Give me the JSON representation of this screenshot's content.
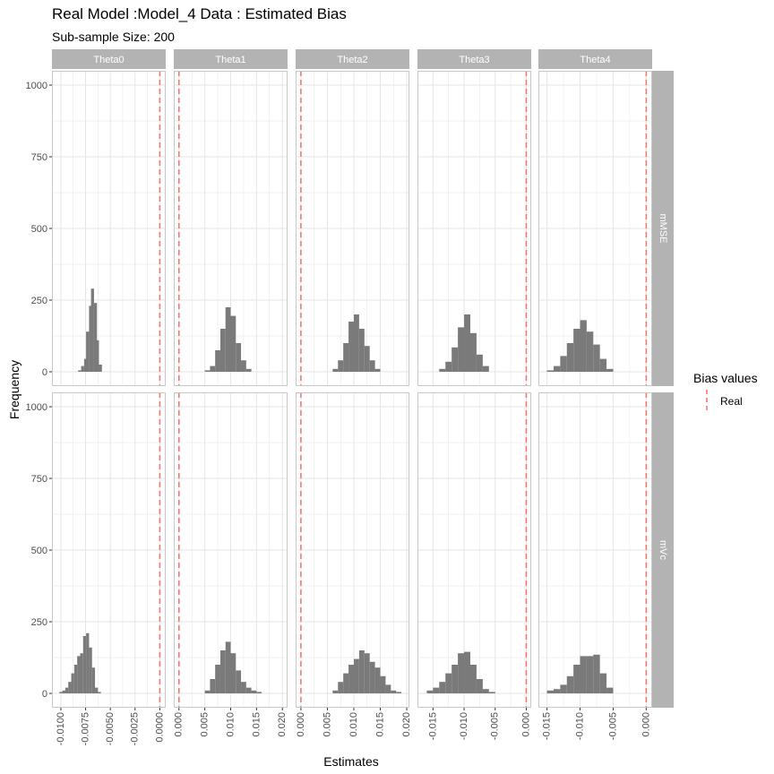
{
  "title": "Real Model :Model_4 Data : Estimated Bias",
  "subtitle": "Sub-sample Size: 200",
  "xlabel": "Estimates",
  "ylabel": "Frequency",
  "legend": {
    "title": "Bias values",
    "items": [
      {
        "label": "Real",
        "color": "#F8766D",
        "style": "dashed"
      }
    ]
  },
  "colors": {
    "bar": "#7a7a7a",
    "strip": "#b3b3b3",
    "grid": "#e5e5e5",
    "panel_border": "#c8c8c8",
    "ref_line": "#F8766D"
  },
  "chart_data": {
    "type": "histogram",
    "facet_cols": [
      "Theta0",
      "Theta1",
      "Theta2",
      "Theta3",
      "Theta4"
    ],
    "facet_rows": [
      "mMSE",
      "mVc"
    ],
    "y_ticks": [
      0,
      250,
      500,
      750,
      1000
    ],
    "ylim": [
      -50,
      1050
    ],
    "grid": true,
    "legend_position": "right",
    "reference_line": {
      "name": "Real",
      "x": 0,
      "style": "dashed"
    },
    "x_axes": [
      {
        "xlim": [
          -0.0109,
          0.0006
        ],
        "ticks": [
          -0.01,
          -0.0075,
          -0.005,
          -0.0025,
          0
        ],
        "tick_labels": [
          "-0.0100",
          "-0.0075",
          "-0.0050",
          "-0.0025",
          "0.0000"
        ]
      },
      {
        "xlim": [
          -0.001,
          0.021
        ],
        "ticks": [
          0,
          0.005,
          0.01,
          0.015,
          0.02
        ],
        "tick_labels": [
          "0.000",
          "0.005",
          "0.010",
          "0.015",
          "0.020"
        ]
      },
      {
        "xlim": [
          -0.001,
          0.0205
        ],
        "ticks": [
          0,
          0.005,
          0.01,
          0.015,
          0.02
        ],
        "tick_labels": [
          "0.000",
          "0.005",
          "0.010",
          "0.015",
          "0.020"
        ]
      },
      {
        "xlim": [
          -0.0175,
          0.0008
        ],
        "ticks": [
          -0.015,
          -0.01,
          -0.005,
          0
        ],
        "tick_labels": [
          "-0.015",
          "-0.010",
          "-0.005",
          "0.000"
        ]
      },
      {
        "xlim": [
          -0.0163,
          0.0009
        ],
        "ticks": [
          -0.015,
          -0.01,
          -0.005,
          0
        ],
        "tick_labels": [
          "-0.015",
          "-0.010",
          "-0.005",
          "0.000"
        ]
      }
    ],
    "panels": [
      {
        "row": "mMSE",
        "col": "Theta0",
        "bins": [
          [
            -0.0081,
            5
          ],
          [
            -0.0078,
            20
          ],
          [
            -0.0075,
            45
          ],
          [
            -0.0073,
            140
          ],
          [
            -0.007,
            230
          ],
          [
            -0.0068,
            290
          ],
          [
            -0.0065,
            240
          ],
          [
            -0.0063,
            110
          ],
          [
            -0.006,
            25
          ]
        ]
      },
      {
        "row": "mMSE",
        "col": "Theta1",
        "bins": [
          [
            0.0055,
            5
          ],
          [
            0.0065,
            20
          ],
          [
            0.0075,
            75
          ],
          [
            0.0085,
            150
          ],
          [
            0.0095,
            225
          ],
          [
            0.0105,
            195
          ],
          [
            0.0115,
            100
          ],
          [
            0.0125,
            40
          ],
          [
            0.0135,
            10
          ]
        ]
      },
      {
        "row": "mMSE",
        "col": "Theta2",
        "bins": [
          [
            0.0065,
            10
          ],
          [
            0.0075,
            40
          ],
          [
            0.0085,
            100
          ],
          [
            0.0095,
            175
          ],
          [
            0.0105,
            200
          ],
          [
            0.0115,
            150
          ],
          [
            0.0125,
            90
          ],
          [
            0.0135,
            40
          ],
          [
            0.0145,
            10
          ]
        ]
      },
      {
        "row": "mMSE",
        "col": "Theta3",
        "bins": [
          [
            -0.0135,
            10
          ],
          [
            -0.0125,
            35
          ],
          [
            -0.0115,
            85
          ],
          [
            -0.0105,
            155
          ],
          [
            -0.0095,
            200
          ],
          [
            -0.0085,
            135
          ],
          [
            -0.0075,
            60
          ],
          [
            -0.0065,
            20
          ]
        ]
      },
      {
        "row": "mMSE",
        "col": "Theta4",
        "bins": [
          [
            -0.0145,
            5
          ],
          [
            -0.0135,
            20
          ],
          [
            -0.0125,
            55
          ],
          [
            -0.0115,
            100
          ],
          [
            -0.0105,
            150
          ],
          [
            -0.0095,
            180
          ],
          [
            -0.0085,
            140
          ],
          [
            -0.0075,
            95
          ],
          [
            -0.0065,
            45
          ],
          [
            -0.0055,
            10
          ]
        ]
      },
      {
        "row": "mVc",
        "col": "Theta0",
        "bins": [
          [
            -0.01,
            5
          ],
          [
            -0.0097,
            10
          ],
          [
            -0.0094,
            20
          ],
          [
            -0.0091,
            40
          ],
          [
            -0.0088,
            70
          ],
          [
            -0.0085,
            100
          ],
          [
            -0.0082,
            130
          ],
          [
            -0.0079,
            140
          ],
          [
            -0.0076,
            200
          ],
          [
            -0.0073,
            210
          ],
          [
            -0.007,
            160
          ],
          [
            -0.0067,
            90
          ],
          [
            -0.0064,
            20
          ],
          [
            -0.0061,
            5
          ]
        ]
      },
      {
        "row": "mVc",
        "col": "Theta1",
        "bins": [
          [
            0.0055,
            10
          ],
          [
            0.0065,
            50
          ],
          [
            0.0075,
            100
          ],
          [
            0.0085,
            150
          ],
          [
            0.0095,
            180
          ],
          [
            0.0105,
            140
          ],
          [
            0.0115,
            80
          ],
          [
            0.0125,
            40
          ],
          [
            0.0135,
            20
          ],
          [
            0.0145,
            10
          ],
          [
            0.0155,
            5
          ]
        ]
      },
      {
        "row": "mVc",
        "col": "Theta2",
        "bins": [
          [
            0.0065,
            10
          ],
          [
            0.0075,
            40
          ],
          [
            0.0085,
            70
          ],
          [
            0.0095,
            100
          ],
          [
            0.0105,
            120
          ],
          [
            0.0115,
            150
          ],
          [
            0.0125,
            140
          ],
          [
            0.0135,
            110
          ],
          [
            0.0145,
            90
          ],
          [
            0.0155,
            60
          ],
          [
            0.0165,
            30
          ],
          [
            0.0175,
            10
          ],
          [
            0.0185,
            5
          ]
        ]
      },
      {
        "row": "mVc",
        "col": "Theta3",
        "bins": [
          [
            -0.0155,
            10
          ],
          [
            -0.0145,
            20
          ],
          [
            -0.0135,
            40
          ],
          [
            -0.0125,
            70
          ],
          [
            -0.0115,
            100
          ],
          [
            -0.0105,
            140
          ],
          [
            -0.0095,
            145
          ],
          [
            -0.0085,
            100
          ],
          [
            -0.0075,
            50
          ],
          [
            -0.0065,
            15
          ],
          [
            -0.0055,
            5
          ]
        ]
      },
      {
        "row": "mVc",
        "col": "Theta4",
        "bins": [
          [
            -0.0145,
            10
          ],
          [
            -0.0135,
            15
          ],
          [
            -0.0125,
            30
          ],
          [
            -0.0115,
            60
          ],
          [
            -0.0105,
            100
          ],
          [
            -0.0095,
            130
          ],
          [
            -0.0085,
            130
          ],
          [
            -0.0075,
            135
          ],
          [
            -0.0065,
            70
          ],
          [
            -0.0055,
            20
          ]
        ]
      }
    ]
  }
}
